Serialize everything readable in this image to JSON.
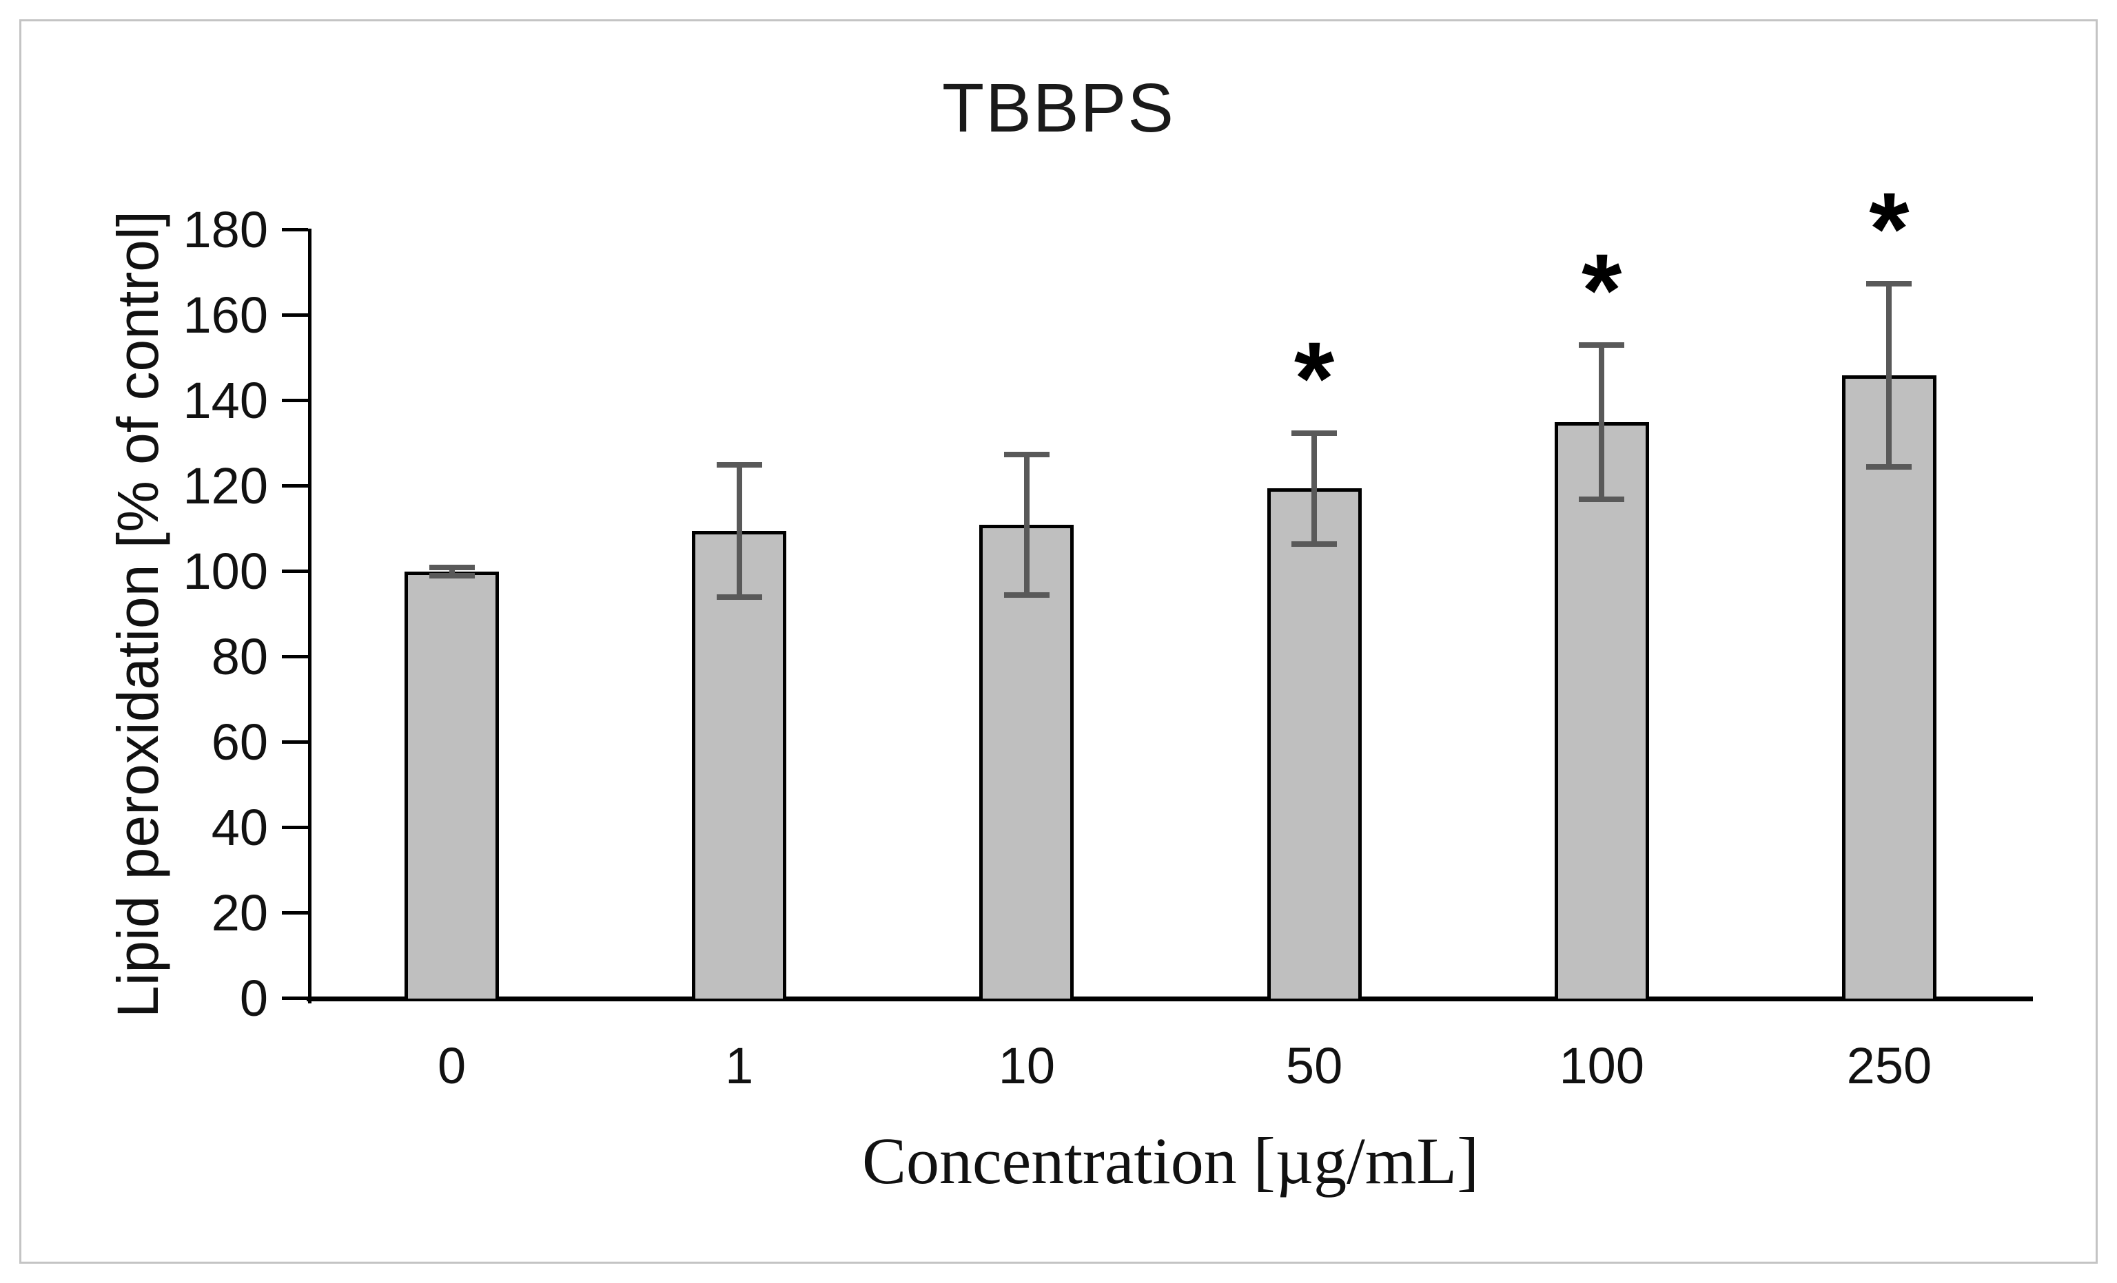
{
  "chart_data": {
    "type": "bar",
    "title": "TBBPS",
    "xlabel": "Concentration [µg/mL]",
    "ylabel": "Lipid peroxidation [% of control]",
    "ylim": [
      0,
      180
    ],
    "ytick_step": 20,
    "ytick_labels": [
      "0",
      "20",
      "40",
      "60",
      "80",
      "100",
      "120",
      "140",
      "160",
      "180"
    ],
    "categories": [
      "0",
      "1",
      "10",
      "50",
      "100",
      "250"
    ],
    "values": [
      100,
      109.5,
      111,
      119.5,
      135,
      146
    ],
    "error_bars": [
      1,
      15.5,
      16.5,
      13,
      18,
      21.5
    ],
    "significance": [
      false,
      false,
      false,
      true,
      true,
      true
    ],
    "significance_marker": "*",
    "grid": false,
    "legend": false,
    "colors": {
      "bar_fill": "#bfbfbf",
      "bar_border": "#000000",
      "error_bar": "#595959",
      "axis": "#000000",
      "figure_border": "#c4c4c4",
      "text": "#111111"
    }
  }
}
